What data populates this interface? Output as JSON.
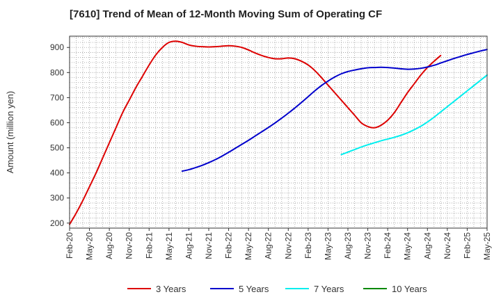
{
  "chart_data": {
    "type": "line",
    "title": "[7610]  Trend of Mean of 12-Month Moving Sum of Operating CF",
    "xlabel": "",
    "ylabel": "Amount (million yen)",
    "ylim": [
      180,
      945
    ],
    "yticks": [
      200,
      300,
      400,
      500,
      600,
      700,
      800,
      900
    ],
    "xticks": [
      "Feb-20",
      "May-20",
      "Aug-20",
      "Nov-20",
      "Feb-21",
      "May-21",
      "Aug-21",
      "Nov-21",
      "Feb-22",
      "May-22",
      "Aug-22",
      "Nov-22",
      "Feb-23",
      "May-23",
      "Aug-23",
      "Nov-23",
      "Feb-24",
      "May-24",
      "Aug-24",
      "Nov-24",
      "Feb-25",
      "May-25"
    ],
    "grid": true,
    "legend_position": "bottom",
    "series": [
      {
        "name": "3 Years",
        "color": "#dd0000",
        "start": "Feb-20",
        "values": [
          195,
          240,
          290,
          345,
          400,
          460,
          520,
          580,
          640,
          690,
          740,
          785,
          830,
          870,
          900,
          920,
          925,
          920,
          910,
          905,
          903,
          902,
          903,
          905,
          907,
          905,
          900,
          890,
          878,
          868,
          860,
          855,
          855,
          858,
          855,
          845,
          830,
          808,
          780,
          750,
          720,
          690,
          660,
          630,
          600,
          585,
          580,
          590,
          610,
          640,
          680,
          720,
          755,
          790,
          820,
          845,
          868
        ]
      },
      {
        "name": "5 Years",
        "color": "#0000cc",
        "start": "Jul-21",
        "values": [
          407,
          413,
          421,
          430,
          441,
          453,
          467,
          482,
          498,
          514,
          530,
          547,
          564,
          581,
          599,
          618,
          638,
          659,
          681,
          704,
          727,
          748,
          766,
          782,
          795,
          804,
          810,
          815,
          819,
          820,
          821,
          820,
          818,
          815,
          813,
          814,
          817,
          822,
          829,
          838,
          847,
          856,
          864,
          872,
          879,
          886,
          892
        ]
      },
      {
        "name": "7 Years",
        "color": "#00eeee",
        "start": "Jul-23",
        "values": [
          473,
          483,
          493,
          503,
          512,
          520,
          528,
          535,
          542,
          550,
          560,
          572,
          586,
          603,
          622,
          643,
          664,
          685,
          706,
          727,
          748,
          769,
          790
        ]
      },
      {
        "name": "10 Years",
        "color": "#008800",
        "start": "",
        "values": []
      }
    ]
  }
}
